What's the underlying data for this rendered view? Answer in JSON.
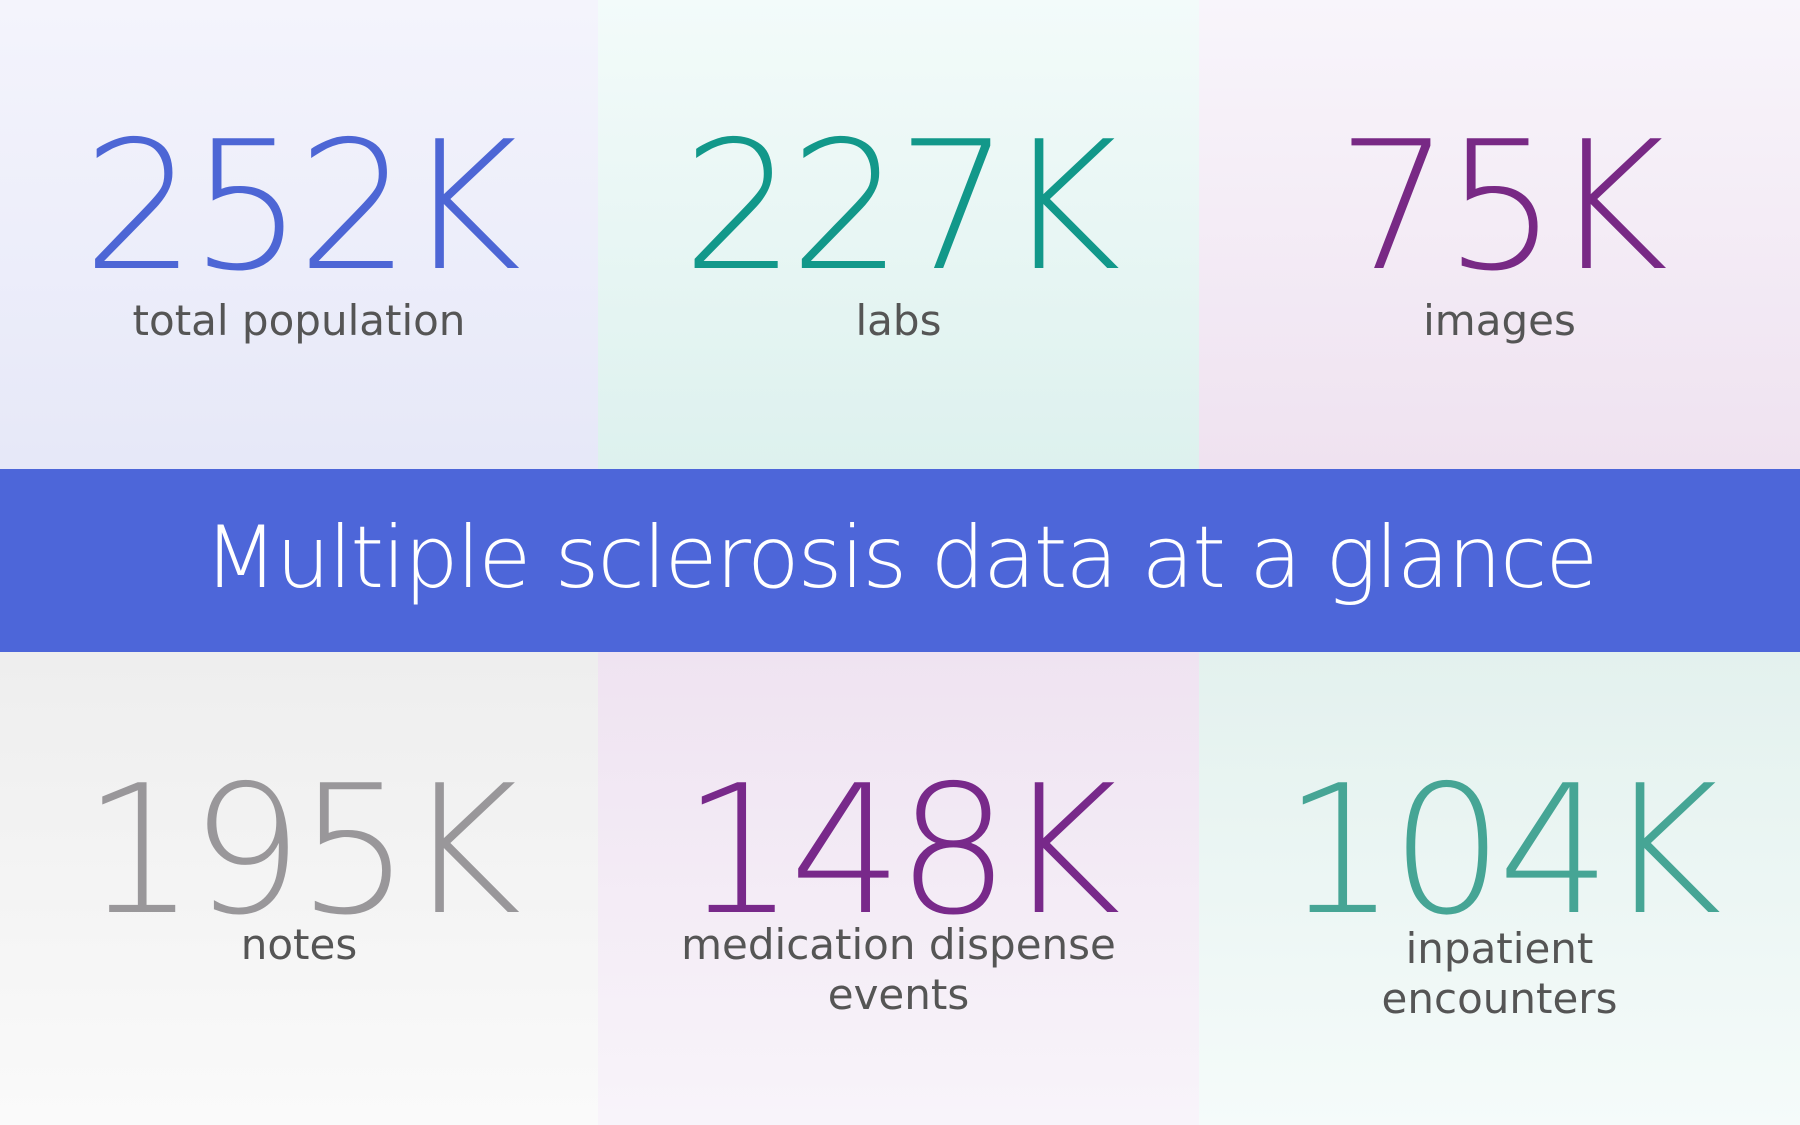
{
  "banner": {
    "title": "Multiple sclerosis data at a glance",
    "background_color": "#4d66d9"
  },
  "stats_top": [
    {
      "value": "252K",
      "label": "total population",
      "color": "#4d66d5"
    },
    {
      "value": "227K",
      "label": "labs",
      "color": "#12988a"
    },
    {
      "value": "75K",
      "label": "images",
      "color": "#782985"
    }
  ],
  "stats_bottom": [
    {
      "value": "195K",
      "label": "notes",
      "color": "#99979a"
    },
    {
      "value": "148K",
      "label": "medication dispense events",
      "color": "#78298a"
    },
    {
      "value": "104K",
      "label": "inpatient encounters",
      "color": "#46a595"
    }
  ]
}
